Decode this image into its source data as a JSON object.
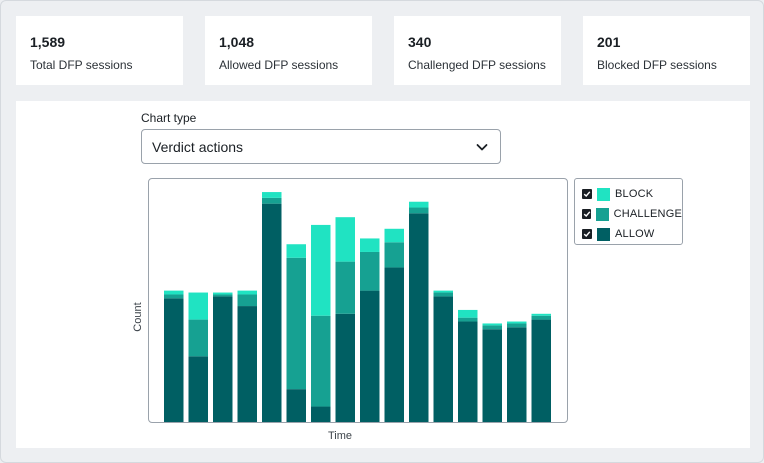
{
  "stats": [
    {
      "value": "1,589",
      "label": "Total DFP sessions"
    },
    {
      "value": "1,048",
      "label": "Allowed DFP sessions"
    },
    {
      "value": "340",
      "label": "Challenged DFP sessions"
    },
    {
      "value": "201",
      "label": "Blocked DFP sessions"
    }
  ],
  "chart_type": {
    "label": "Chart type",
    "selected": "Verdict actions"
  },
  "chart_data": {
    "type": "bar",
    "stacked": true,
    "title": "",
    "xlabel": "Time",
    "ylabel": "Count",
    "ylim": [
      0,
      118
    ],
    "grid": false,
    "legend_position": "right",
    "series": [
      {
        "name": "ALLOW",
        "color": "#005f63",
        "values": [
          64,
          34,
          65,
          60,
          113,
          17,
          8,
          56,
          68,
          80,
          108,
          65,
          52,
          48,
          49,
          53
        ]
      },
      {
        "name": "CHALLENGE",
        "color": "#16a192",
        "values": [
          2,
          19,
          1,
          6,
          3,
          68,
          47,
          27,
          20,
          13,
          3,
          2,
          2,
          2,
          2,
          2
        ]
      },
      {
        "name": "BLOCK",
        "color": "#20e3c2",
        "values": [
          2,
          14,
          1,
          2,
          3,
          7,
          47,
          23,
          7,
          7,
          3,
          1,
          4,
          1,
          1,
          1
        ]
      }
    ]
  },
  "legend": {
    "items": [
      {
        "label": "BLOCK",
        "color": "#20e3c2"
      },
      {
        "label": "CHALLENGE",
        "color": "#16a192"
      },
      {
        "label": "ALLOW",
        "color": "#005f63"
      }
    ]
  }
}
